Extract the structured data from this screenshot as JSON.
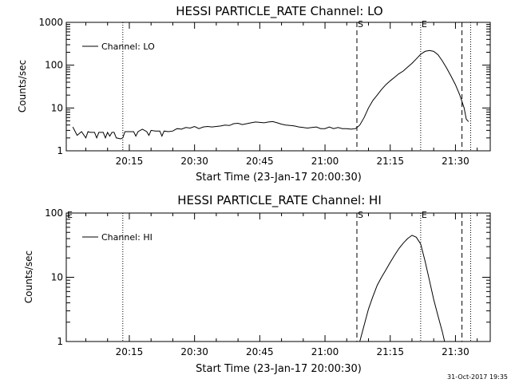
{
  "footer_date": "31-Oct-2017 19:35",
  "chart_data": [
    {
      "type": "line",
      "title": "HESSI PARTICLE_RATE Channel: LO",
      "xlabel": "Start Time (23-Jan-17 20:00:30)",
      "ylabel": "Counts/sec",
      "yscale": "log",
      "xlim": [
        "20:00:30",
        "21:38:00"
      ],
      "ylim": [
        1,
        1000
      ],
      "x_ticks": [
        "20:15",
        "20:30",
        "20:45",
        "21:00",
        "21:15",
        "21:30"
      ],
      "y_ticks": [
        "1",
        "10",
        "100",
        "1000"
      ],
      "legend": "top-left",
      "legend_label": "Channel: LO",
      "grid": false,
      "markers": [
        {
          "time": "20:13:30",
          "style": "dotted",
          "label": ""
        },
        {
          "time": "21:07:20",
          "style": "dashed",
          "label": "S"
        },
        {
          "time": "21:22:00",
          "style": "dotted",
          "label": "E"
        },
        {
          "time": "21:31:30",
          "style": "dashed",
          "label": ""
        },
        {
          "time": "21:33:30",
          "style": "dotted",
          "label": ""
        }
      ],
      "series": [
        {
          "name": "Channel: LO",
          "x": [
            "20:02:00",
            "20:03:00",
            "20:04:00",
            "20:05:00",
            "20:05:30",
            "20:06:00",
            "20:07:00",
            "20:07:30",
            "20:08:00",
            "20:09:00",
            "20:09:30",
            "20:10:00",
            "20:10:30",
            "20:11:00",
            "20:11:30",
            "20:12:00",
            "20:13:00",
            "20:13:30",
            "20:14:00",
            "20:15:00",
            "20:16:00",
            "20:16:30",
            "20:17:00",
            "20:18:00",
            "20:19:00",
            "20:19:30",
            "20:20:00",
            "20:21:00",
            "20:22:00",
            "20:22:30",
            "20:23:00",
            "20:24:00",
            "20:25:00",
            "20:25:30",
            "20:26:00",
            "20:27:00",
            "20:28:00",
            "20:29:00",
            "20:30:00",
            "20:31:00",
            "20:32:00",
            "20:33:00",
            "20:34:00",
            "20:35:00",
            "20:36:00",
            "20:37:00",
            "20:38:00",
            "20:39:00",
            "20:40:00",
            "20:41:00",
            "20:42:00",
            "20:43:00",
            "20:44:00",
            "20:45:00",
            "20:46:00",
            "20:47:00",
            "20:48:00",
            "20:49:00",
            "20:50:00",
            "20:51:00",
            "20:52:00",
            "20:53:00",
            "20:54:00",
            "20:55:00",
            "20:56:00",
            "20:57:00",
            "20:58:00",
            "20:59:00",
            "21:00:00",
            "21:01:00",
            "21:02:00",
            "21:03:00",
            "21:04:00",
            "21:05:00",
            "21:06:00",
            "21:07:00",
            "21:07:30",
            "21:08:00",
            "21:09:00",
            "21:10:00",
            "21:11:00",
            "21:12:00",
            "21:13:00",
            "21:14:00",
            "21:15:00",
            "21:16:00",
            "21:17:00",
            "21:18:00",
            "21:19:00",
            "21:20:00",
            "21:21:00",
            "21:22:00",
            "21:23:00",
            "21:24:00",
            "21:25:00",
            "21:26:00",
            "21:27:00",
            "21:28:00",
            "21:29:00",
            "21:30:00",
            "21:31:00",
            "21:32:00",
            "21:32:30",
            "21:33:00"
          ],
          "values": [
            3.6,
            2.3,
            2.8,
            2.0,
            2.8,
            2.7,
            2.7,
            2.0,
            2.7,
            2.7,
            2.0,
            2.7,
            2.2,
            2.7,
            2.7,
            2.0,
            1.9,
            2.0,
            2.8,
            2.8,
            2.8,
            2.2,
            2.8,
            3.2,
            2.8,
            2.3,
            3.0,
            2.9,
            2.9,
            2.2,
            2.9,
            2.8,
            2.9,
            3.1,
            3.3,
            3.2,
            3.5,
            3.4,
            3.7,
            3.3,
            3.6,
            3.7,
            3.6,
            3.7,
            3.8,
            4.0,
            3.9,
            4.3,
            4.4,
            4.1,
            4.3,
            4.5,
            4.7,
            4.6,
            4.5,
            4.7,
            4.8,
            4.5,
            4.2,
            4.0,
            3.9,
            3.8,
            3.6,
            3.5,
            3.4,
            3.5,
            3.6,
            3.3,
            3.3,
            3.6,
            3.3,
            3.5,
            3.3,
            3.3,
            3.2,
            3.3,
            3.6,
            4.0,
            6.0,
            10.0,
            15.0,
            20.0,
            27.0,
            35.0,
            43.0,
            52.0,
            63.0,
            73.0,
            90.0,
            110.0,
            140.0,
            180.0,
            210.0,
            220.0,
            210.0,
            175.0,
            125.0,
            85.0,
            55.0,
            35.0,
            20.0,
            10.0,
            5.5,
            4.8
          ]
        }
      ]
    },
    {
      "type": "line",
      "title": "HESSI PARTICLE_RATE Channel: HI",
      "xlabel": "Start Time (23-Jan-17 20:00:30)",
      "ylabel": "Counts/sec",
      "yscale": "log",
      "xlim": [
        "20:00:30",
        "21:38:00"
      ],
      "ylim": [
        1,
        100
      ],
      "x_ticks": [
        "20:15",
        "20:30",
        "20:45",
        "21:00",
        "21:15",
        "21:30"
      ],
      "y_ticks": [
        "1",
        "10",
        "100"
      ],
      "legend": "top-left",
      "legend_label": "Channel: HI",
      "corner_label": "E",
      "grid": false,
      "markers": [
        {
          "time": "20:13:30",
          "style": "dotted",
          "label": ""
        },
        {
          "time": "21:07:20",
          "style": "dashed",
          "label": "S"
        },
        {
          "time": "21:22:00",
          "style": "dotted",
          "label": "E"
        },
        {
          "time": "21:31:30",
          "style": "dashed",
          "label": ""
        },
        {
          "time": "21:33:30",
          "style": "dotted",
          "label": ""
        }
      ],
      "series": [
        {
          "name": "Channel: HI",
          "x": [
            "21:08:00",
            "21:09:00",
            "21:10:00",
            "21:11:00",
            "21:12:00",
            "21:13:00",
            "21:14:00",
            "21:15:00",
            "21:16:00",
            "21:17:00",
            "21:18:00",
            "21:19:00",
            "21:20:00",
            "21:21:00",
            "21:22:00",
            "21:23:00",
            "21:24:00",
            "21:25:00",
            "21:26:00",
            "21:27:00",
            "21:27:30"
          ],
          "values": [
            1.0,
            1.8,
            3.2,
            5.0,
            7.5,
            10.0,
            13.0,
            17.0,
            22.0,
            28.0,
            34.0,
            40.0,
            45.0,
            42.0,
            33.0,
            18.0,
            9.0,
            4.5,
            2.5,
            1.4,
            1.0
          ]
        }
      ]
    }
  ]
}
